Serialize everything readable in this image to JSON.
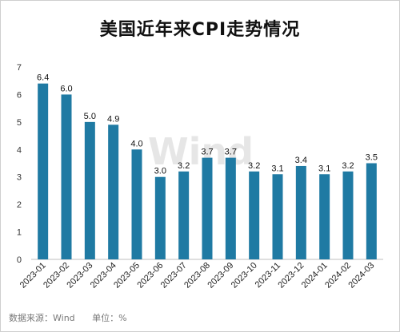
{
  "chart_data": {
    "type": "bar",
    "title": "美国近年来CPI走势情况",
    "categories": [
      "2023-01",
      "2023-02",
      "2023-03",
      "2023-04",
      "2023-05",
      "2023-06",
      "2023-07",
      "2023-08",
      "2023-09",
      "2023-10",
      "2023-11",
      "2023-12",
      "2024-01",
      "2024-02",
      "2024-03"
    ],
    "series": [
      {
        "values": [
          6.4,
          6.0,
          5.0,
          4.9,
          4.0,
          3.0,
          3.2,
          3.7,
          3.7,
          3.2,
          3.1,
          3.4,
          3.1,
          3.2,
          3.5
        ]
      }
    ],
    "value_labels": [
      "6.4",
      "6.0",
      "5.0",
      "4.9",
      "4.0",
      "3.0",
      "3.2",
      "3.7",
      "3.7",
      "3.2",
      "3.1",
      "3.4",
      "3.1",
      "3.2",
      "3.5"
    ],
    "y_ticks": [
      "0",
      "1",
      "2",
      "3",
      "4",
      "5",
      "6",
      "7"
    ],
    "ylim": [
      0,
      7
    ],
    "grid": false,
    "legend": "none",
    "bar_color": "#1f7aa3"
  },
  "footer": {
    "source": "数据来源：Wind",
    "unit": "单位：%"
  },
  "watermark": "Wind"
}
